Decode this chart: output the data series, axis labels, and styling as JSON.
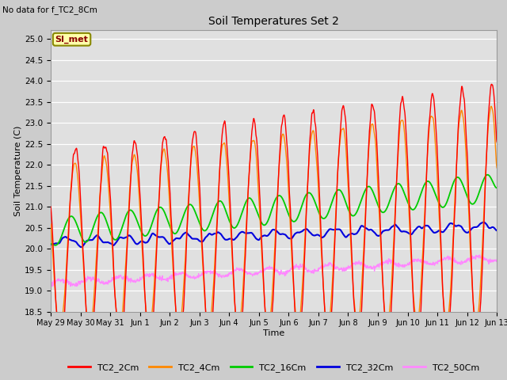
{
  "title": "Soil Temperatures Set 2",
  "subtitle": "No data for f_TC2_8Cm",
  "ylabel": "Soil Temperature (C)",
  "xlabel": "Time",
  "ylim": [
    18.5,
    25.2
  ],
  "yticks": [
    18.5,
    19.0,
    19.5,
    20.0,
    20.5,
    21.0,
    21.5,
    22.0,
    22.5,
    23.0,
    23.5,
    24.0,
    24.5,
    25.0
  ],
  "series": {
    "TC2_2Cm": {
      "color": "#ff0000",
      "lw": 1.0
    },
    "TC2_4Cm": {
      "color": "#ff8800",
      "lw": 1.0
    },
    "TC2_16Cm": {
      "color": "#00cc00",
      "lw": 1.3
    },
    "TC2_32Cm": {
      "color": "#0000dd",
      "lw": 1.5
    },
    "TC2_50Cm": {
      "color": "#ff88ff",
      "lw": 0.9
    }
  },
  "annotation_box": {
    "text": "SI_met",
    "fontsize": 8,
    "bg": "#ffffaa",
    "edge": "#888800"
  },
  "tick_labels": [
    "May 29",
    "May 30",
    "May 31",
    "Jun 1",
    "Jun 2",
    "Jun 3",
    "Jun 4",
    "Jun 5",
    "Jun 6",
    "Jun 7",
    "Jun 8",
    "Jun 9",
    "Jun 10",
    "Jun 11",
    "Jun 12",
    "Jun 13"
  ]
}
